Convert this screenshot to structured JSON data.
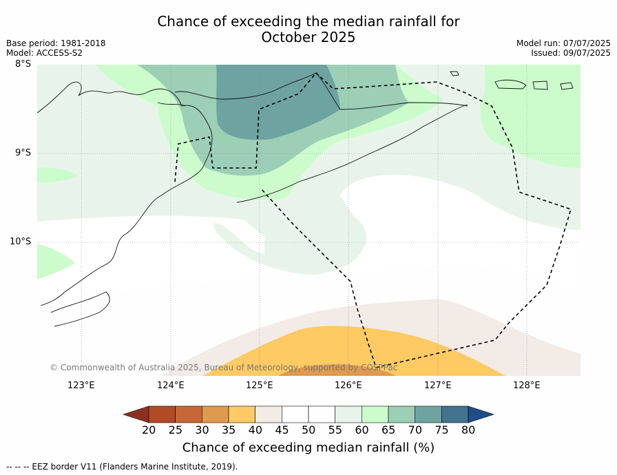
{
  "title_line1": "Chance of exceeding the median rainfall for",
  "title_line2": "October 2025",
  "base_period": "Base period: 1981-2018",
  "model": "Model: ACCESS-S2",
  "model_run": "Model run: 07/07/2025",
  "issued": "Issued: 09/07/2025",
  "lat_labels": [
    "8°S",
    "9°S",
    "10°S"
  ],
  "lon_labels": [
    "123°E",
    "124°E",
    "125°E",
    "126°E",
    "127°E",
    "128°E"
  ],
  "copyright": "© Commonwealth of Australia 2025, Bureau of Meteorology, supported by COSPPac",
  "colorbar": {
    "label": "Chance of exceeding median rainfall (%)",
    "ticks": [
      "20",
      "25",
      "30",
      "35",
      "40",
      "45",
      "50",
      "55",
      "60",
      "65",
      "70",
      "75",
      "80"
    ],
    "colors": [
      "#b34a26",
      "#c96635",
      "#e09a4e",
      "#fdca63",
      "#f2ebe6",
      "#ffffff",
      "#fdfefd",
      "#e8f4ea",
      "#ccfccc",
      "#9ccfb6",
      "#6ea3a1",
      "#43738f"
    ],
    "under_color": "#8c3024",
    "over_color": "#1e4d8a"
  },
  "footer": "--  --  -- EEZ border V11 (Flanders Marine Institute, 2019)."
}
